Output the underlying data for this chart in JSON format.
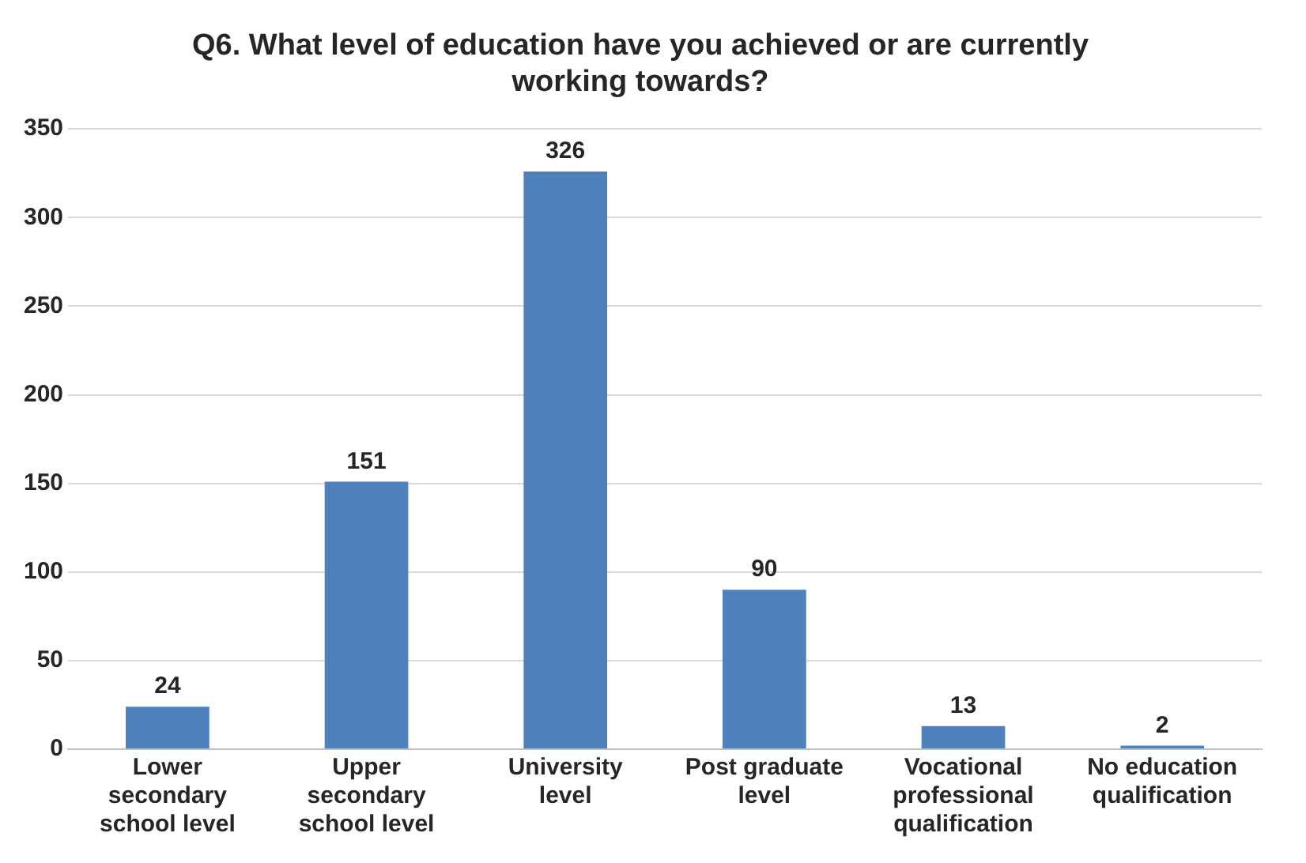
{
  "chart_data": {
    "type": "bar",
    "title": "Q6. What level of education have you achieved or are currently working towards?",
    "categories": [
      "Lower secondary school level",
      "Upper secondary school level",
      "University level",
      "Post graduate level",
      "Vocational professional qualification",
      "No education qualification"
    ],
    "values": [
      24,
      151,
      326,
      90,
      13,
      2
    ],
    "color": "#4f81bd",
    "ylim": [
      0,
      350
    ],
    "yticks": [
      0,
      50,
      100,
      150,
      200,
      250,
      300,
      350
    ],
    "grid": "y",
    "data_labels": true
  }
}
